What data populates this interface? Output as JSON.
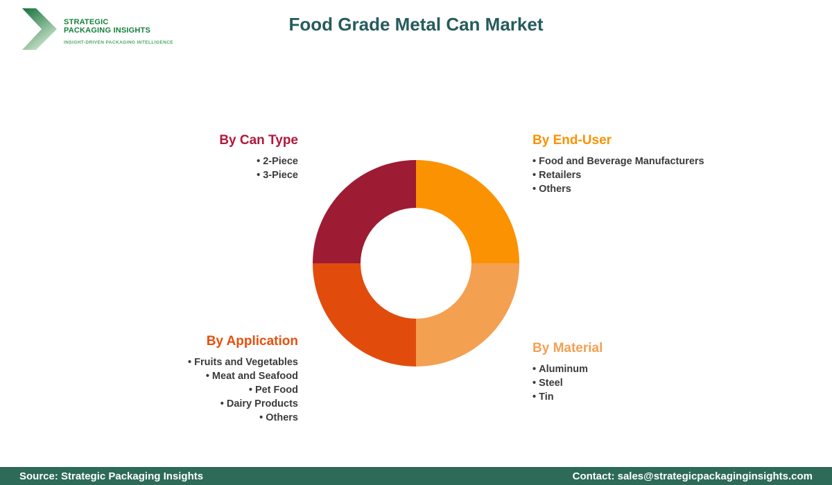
{
  "header": {
    "logo": {
      "line1": "STRATEGIC",
      "line2": "PACKAGING INSIGHTS",
      "tagline": "INSIGHT-DRIVEN PACKAGING INTELLIGENCE",
      "dark_green": "#15803c",
      "light_green": "#bfe0c4"
    },
    "title": "Food Grade Metal Can Market",
    "title_color": "#265b5d"
  },
  "chart_data": {
    "type": "pie",
    "style": "donut",
    "title": "Food Grade Metal Can Market",
    "inner_radius_ratio": 0.54,
    "start_angle_deg": 0,
    "direction": "clockwise",
    "legend": "none",
    "data_labels": "none",
    "slices": [
      {
        "label": "By End-User",
        "value": 25,
        "color": "#fb9202",
        "position": "top-right"
      },
      {
        "label": "By Material",
        "value": 25,
        "color": "#f4a051",
        "position": "bottom-right"
      },
      {
        "label": "By Application",
        "value": 25,
        "color": "#e14c0d",
        "position": "bottom-left"
      },
      {
        "label": "By Can Type",
        "value": 25,
        "color": "#9e1b34",
        "position": "top-left"
      }
    ]
  },
  "segments": {
    "can_type": {
      "title": "By Can Type",
      "heading_color": "#b2173c",
      "items": [
        "2-Piece",
        "3-Piece"
      ]
    },
    "end_user": {
      "title": "By End-User",
      "heading_color": "#fb9203",
      "items": [
        "Food and Beverage Manufacturers",
        "Retailers",
        "Others"
      ]
    },
    "application": {
      "title": "By Application",
      "heading_color": "#e6500d",
      "items": [
        "Fruits and Vegetables",
        "Meat and Seafood",
        "Pet Food",
        "Dairy Products",
        "Others"
      ]
    },
    "material": {
      "title": "By Material",
      "heading_color": "#f4a051",
      "items": [
        "Aluminum",
        "Steel",
        "Tin"
      ]
    }
  },
  "footer": {
    "source": "Source: Strategic Packaging Insights",
    "contact": "Contact: sales@strategicpackaginginsights.com",
    "background_color": "#2d6a57"
  }
}
